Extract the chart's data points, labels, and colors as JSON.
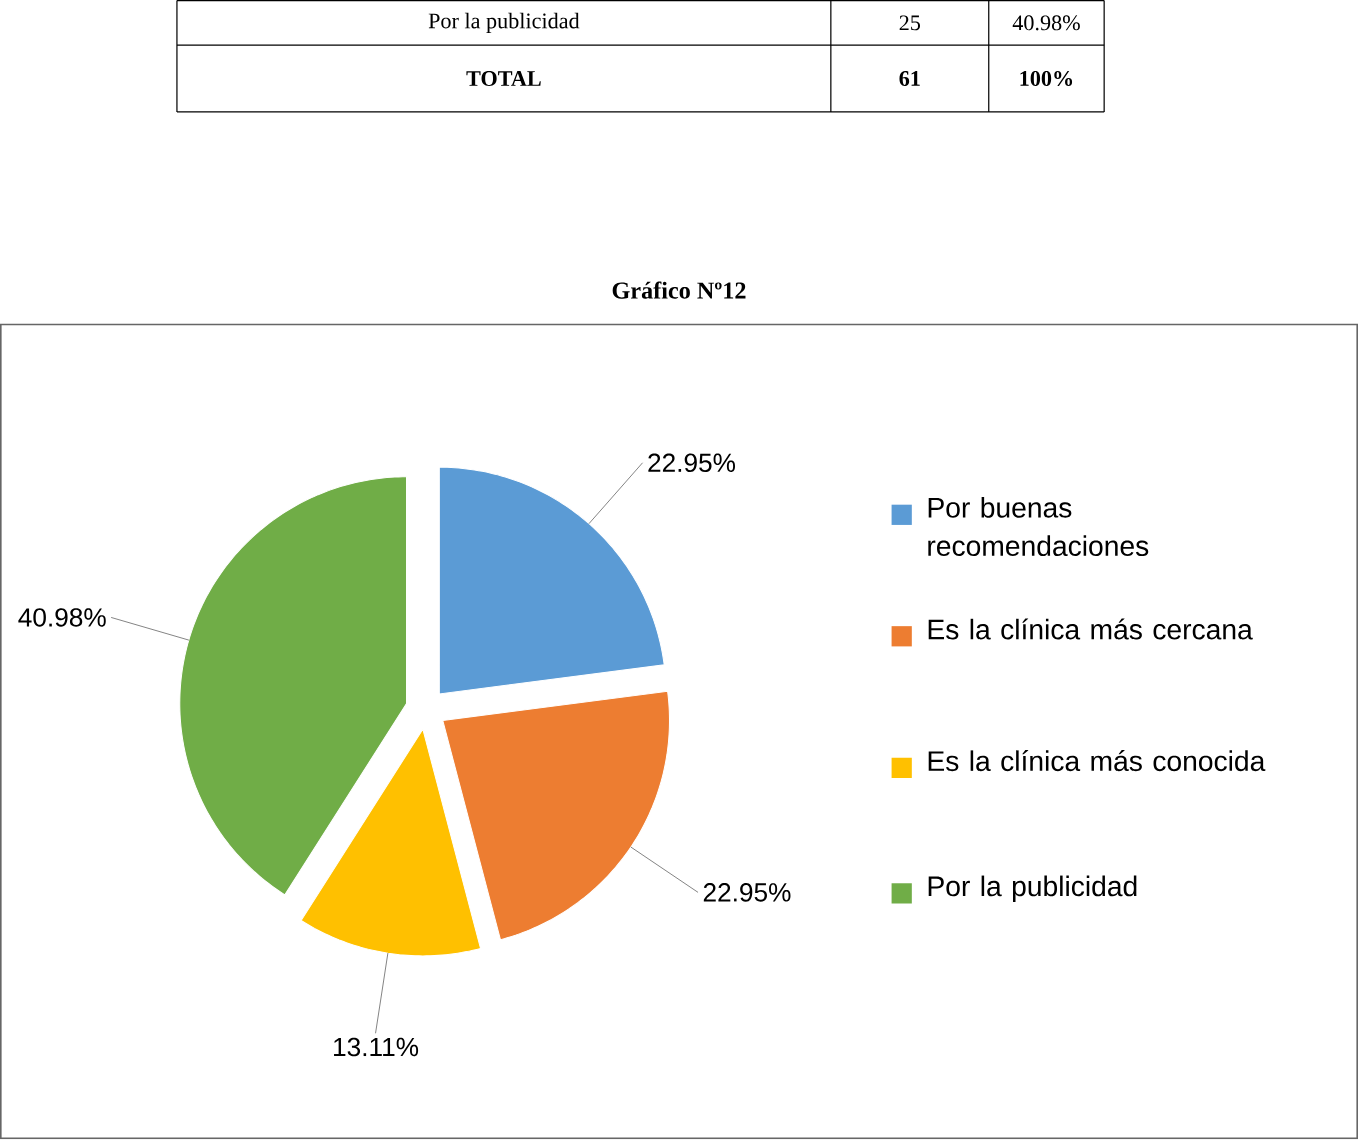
{
  "chart_data": {
    "type": "pie",
    "title": "Gráfico Nº12",
    "categories": [
      "Por buenas recomendaciones",
      "Es la clínica más cercana",
      "Es la clínica más conocida",
      "Por la publicidad"
    ],
    "values": [
      22.95,
      22.95,
      13.11,
      40.98
    ],
    "colors": [
      "#5b9bd5",
      "#ed7d31",
      "#ffc000",
      "#70ad47"
    ],
    "value_labels": [
      "22.95%",
      "22.95%",
      "13.11%",
      "40.98%"
    ],
    "legend": "right",
    "annotations": [
      "Por la publicidad",
      "25",
      "40.98%",
      "TOTAL",
      "61",
      "100%"
    ]
  }
}
